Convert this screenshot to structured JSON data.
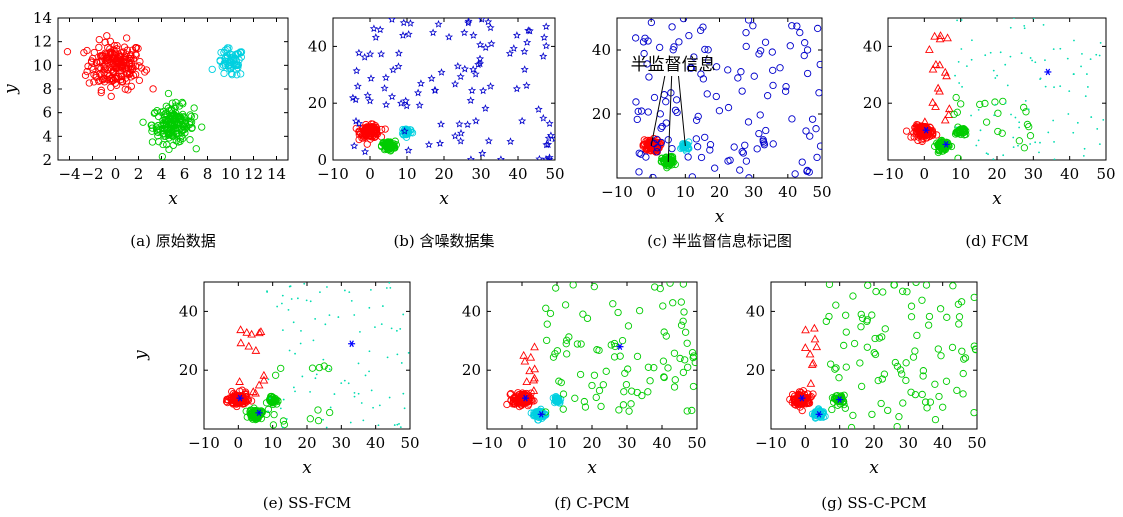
{
  "chart_data": [
    {
      "type": "scatter",
      "caption": "(a) 原始数据",
      "xlabel": "x",
      "ylabel": "y",
      "xlim": [
        -5,
        15
      ],
      "ylim": [
        2,
        14
      ],
      "xticks": [
        -4,
        -2,
        0,
        2,
        4,
        6,
        8,
        10,
        12,
        14
      ],
      "yticks": [
        2,
        4,
        6,
        8,
        10,
        12,
        14
      ],
      "series": [
        {
          "color": "#ff0000",
          "marker": "circle",
          "center": [
            0,
            10
          ],
          "spread": [
            1.2,
            1.0
          ],
          "count": 200
        },
        {
          "color": "#00cc00",
          "marker": "circle",
          "center": [
            5,
            5
          ],
          "spread": [
            0.9,
            0.8
          ],
          "count": 170
        },
        {
          "color": "#00d0e0",
          "marker": "circle",
          "center": [
            10,
            10.2
          ],
          "spread": [
            0.6,
            0.6
          ],
          "count": 60
        }
      ]
    },
    {
      "type": "scatter",
      "caption": "(b) 含噪数据集",
      "xlabel": "x",
      "ylabel": "",
      "xlim": [
        -10,
        50
      ],
      "ylim": [
        0,
        50
      ],
      "xticks": [
        -10,
        0,
        10,
        20,
        30,
        40,
        50
      ],
      "yticks": [
        0,
        20,
        40
      ],
      "series": [
        {
          "color": "#ff0000",
          "marker": "circle",
          "center": [
            0,
            10
          ],
          "spread": [
            1.3,
            1.1
          ],
          "count": 120
        },
        {
          "color": "#00cc00",
          "marker": "circle",
          "center": [
            5,
            5
          ],
          "spread": [
            0.9,
            0.8
          ],
          "count": 80
        },
        {
          "color": "#00d0e0",
          "marker": "circle",
          "center": [
            10,
            10
          ],
          "spread": [
            0.7,
            0.7
          ],
          "count": 40
        },
        {
          "color": "#0000cc",
          "marker": "star",
          "noise": [
            -5,
            50,
            0,
            50
          ],
          "count": 110
        }
      ]
    },
    {
      "type": "scatter",
      "caption": "(c) 半监督信息标记图",
      "xlabel": "x",
      "ylabel": "",
      "xlim": [
        -10,
        50
      ],
      "ylim": [
        0,
        50
      ],
      "xticks": [
        -10,
        0,
        10,
        20,
        30,
        40,
        50
      ],
      "yticks": [
        20,
        40
      ],
      "annotation": "半监督信息",
      "series": [
        {
          "color": "#ff0000",
          "marker": "circle",
          "center": [
            0,
            10
          ],
          "spread": [
            1.2,
            1.0
          ],
          "count": 100
        },
        {
          "color": "#00cc00",
          "marker": "circle",
          "center": [
            5,
            5
          ],
          "spread": [
            0.9,
            0.8
          ],
          "count": 70
        },
        {
          "color": "#00d0e0",
          "marker": "circle",
          "center": [
            10,
            10
          ],
          "spread": [
            0.6,
            0.6
          ],
          "count": 30
        },
        {
          "color": "#0000cc",
          "marker": "circle",
          "noise": [
            -5,
            50,
            0,
            50
          ],
          "count": 130
        }
      ]
    },
    {
      "type": "scatter",
      "caption": "(d) FCM",
      "xlabel": "x",
      "ylabel": "",
      "xlim": [
        -10,
        50
      ],
      "ylim": [
        0,
        50
      ],
      "xticks": [
        -10,
        0,
        10,
        20,
        30,
        40,
        50
      ],
      "yticks": [
        20,
        40
      ],
      "centers": [
        [
          0.5,
          10.5
        ],
        [
          6,
          5.5
        ],
        [
          34,
          31
        ]
      ],
      "series": [
        {
          "color": "#ff0000",
          "marker": "circle",
          "center": [
            0,
            10
          ],
          "spread": [
            1.3,
            1.1
          ],
          "count": 110
        },
        {
          "color": "#00cc00",
          "marker": "circle",
          "center": [
            5,
            5
          ],
          "spread": [
            0.9,
            0.8
          ],
          "count": 70
        },
        {
          "color": "#00cc00",
          "marker": "circle",
          "center": [
            10,
            10
          ],
          "spread": [
            0.7,
            0.7
          ],
          "count": 35
        },
        {
          "color": "#ff0000",
          "marker": "triangle",
          "noise": [
            0,
            8,
            12,
            45
          ],
          "count": 18
        },
        {
          "color": "#00cc00",
          "marker": "circle",
          "noise": [
            8,
            30,
            0,
            22
          ],
          "count": 20
        },
        {
          "color": "#00dcb0",
          "marker": "dot",
          "noise": [
            8,
            50,
            0,
            50
          ],
          "count": 90
        }
      ]
    },
    {
      "type": "scatter",
      "caption": "(e) SS-FCM",
      "xlabel": "x",
      "ylabel": "y",
      "xlim": [
        -10,
        50
      ],
      "ylim": [
        0,
        50
      ],
      "xticks": [
        -10,
        0,
        10,
        20,
        30,
        40,
        50
      ],
      "yticks": [
        20,
        40
      ],
      "centers": [
        [
          0.5,
          10.5
        ],
        [
          6,
          5.5
        ],
        [
          33,
          29
        ]
      ],
      "series": [
        {
          "color": "#ff0000",
          "marker": "circle",
          "center": [
            0,
            10
          ],
          "spread": [
            1.3,
            1.1
          ],
          "count": 110
        },
        {
          "color": "#00cc00",
          "marker": "circle",
          "center": [
            5,
            5
          ],
          "spread": [
            0.9,
            0.8
          ],
          "count": 70
        },
        {
          "color": "#00cc00",
          "marker": "circle",
          "center": [
            10,
            10
          ],
          "spread": [
            0.7,
            0.7
          ],
          "count": 35
        },
        {
          "color": "#ff0000",
          "marker": "triangle",
          "noise": [
            0,
            8,
            12,
            35
          ],
          "count": 14
        },
        {
          "color": "#00cc00",
          "marker": "circle",
          "noise": [
            8,
            30,
            0,
            22
          ],
          "count": 18
        },
        {
          "color": "#00dcb0",
          "marker": "dot",
          "noise": [
            8,
            50,
            0,
            50
          ],
          "count": 90
        }
      ]
    },
    {
      "type": "scatter",
      "caption": "(f) C-PCM",
      "xlabel": "x",
      "ylabel": "",
      "xlim": [
        -10,
        50
      ],
      "ylim": [
        0,
        50
      ],
      "xticks": [
        -10,
        0,
        10,
        20,
        30,
        40,
        50
      ],
      "yticks": [
        20,
        40
      ],
      "centers": [
        [
          1,
          10.5
        ],
        [
          5.5,
          5
        ],
        [
          28,
          28
        ]
      ],
      "series": [
        {
          "color": "#ff0000",
          "marker": "circle",
          "center": [
            0,
            10
          ],
          "spread": [
            1.3,
            1.1
          ],
          "count": 110
        },
        {
          "color": "#00d0e0",
          "marker": "circle",
          "center": [
            5,
            5
          ],
          "spread": [
            0.9,
            0.8
          ],
          "count": 60
        },
        {
          "color": "#00d0e0",
          "marker": "circle",
          "center": [
            10,
            10
          ],
          "spread": [
            0.6,
            0.6
          ],
          "count": 30
        },
        {
          "color": "#ff0000",
          "marker": "triangle",
          "noise": [
            0,
            8,
            12,
            32
          ],
          "count": 10
        },
        {
          "color": "#00cc00",
          "marker": "circle",
          "noise": [
            6,
            50,
            5,
            50
          ],
          "count": 95
        }
      ]
    },
    {
      "type": "scatter",
      "caption": "(g) SS-C-PCM",
      "xlabel": "x",
      "ylabel": "",
      "xlim": [
        -10,
        50
      ],
      "ylim": [
        0,
        50
      ],
      "xticks": [
        -10,
        0,
        10,
        20,
        30,
        40,
        50
      ],
      "yticks": [
        20,
        40
      ],
      "centers": [
        [
          -1,
          10.5
        ],
        [
          4,
          5
        ],
        [
          10,
          10
        ]
      ],
      "series": [
        {
          "color": "#ff0000",
          "marker": "circle",
          "center": [
            -1,
            10
          ],
          "spread": [
            1.3,
            1.1
          ],
          "count": 110
        },
        {
          "color": "#00d0e0",
          "marker": "circle",
          "center": [
            4,
            5
          ],
          "spread": [
            0.8,
            0.7
          ],
          "count": 50
        },
        {
          "color": "#00cc00",
          "marker": "circle",
          "center": [
            10,
            10
          ],
          "spread": [
            0.7,
            0.7
          ],
          "count": 40
        },
        {
          "color": "#ff0000",
          "marker": "triangle",
          "noise": [
            -1,
            4,
            12,
            35
          ],
          "count": 9
        },
        {
          "color": "#00cc00",
          "marker": "circle",
          "noise": [
            6,
            50,
            0,
            50
          ],
          "count": 100
        }
      ]
    }
  ]
}
